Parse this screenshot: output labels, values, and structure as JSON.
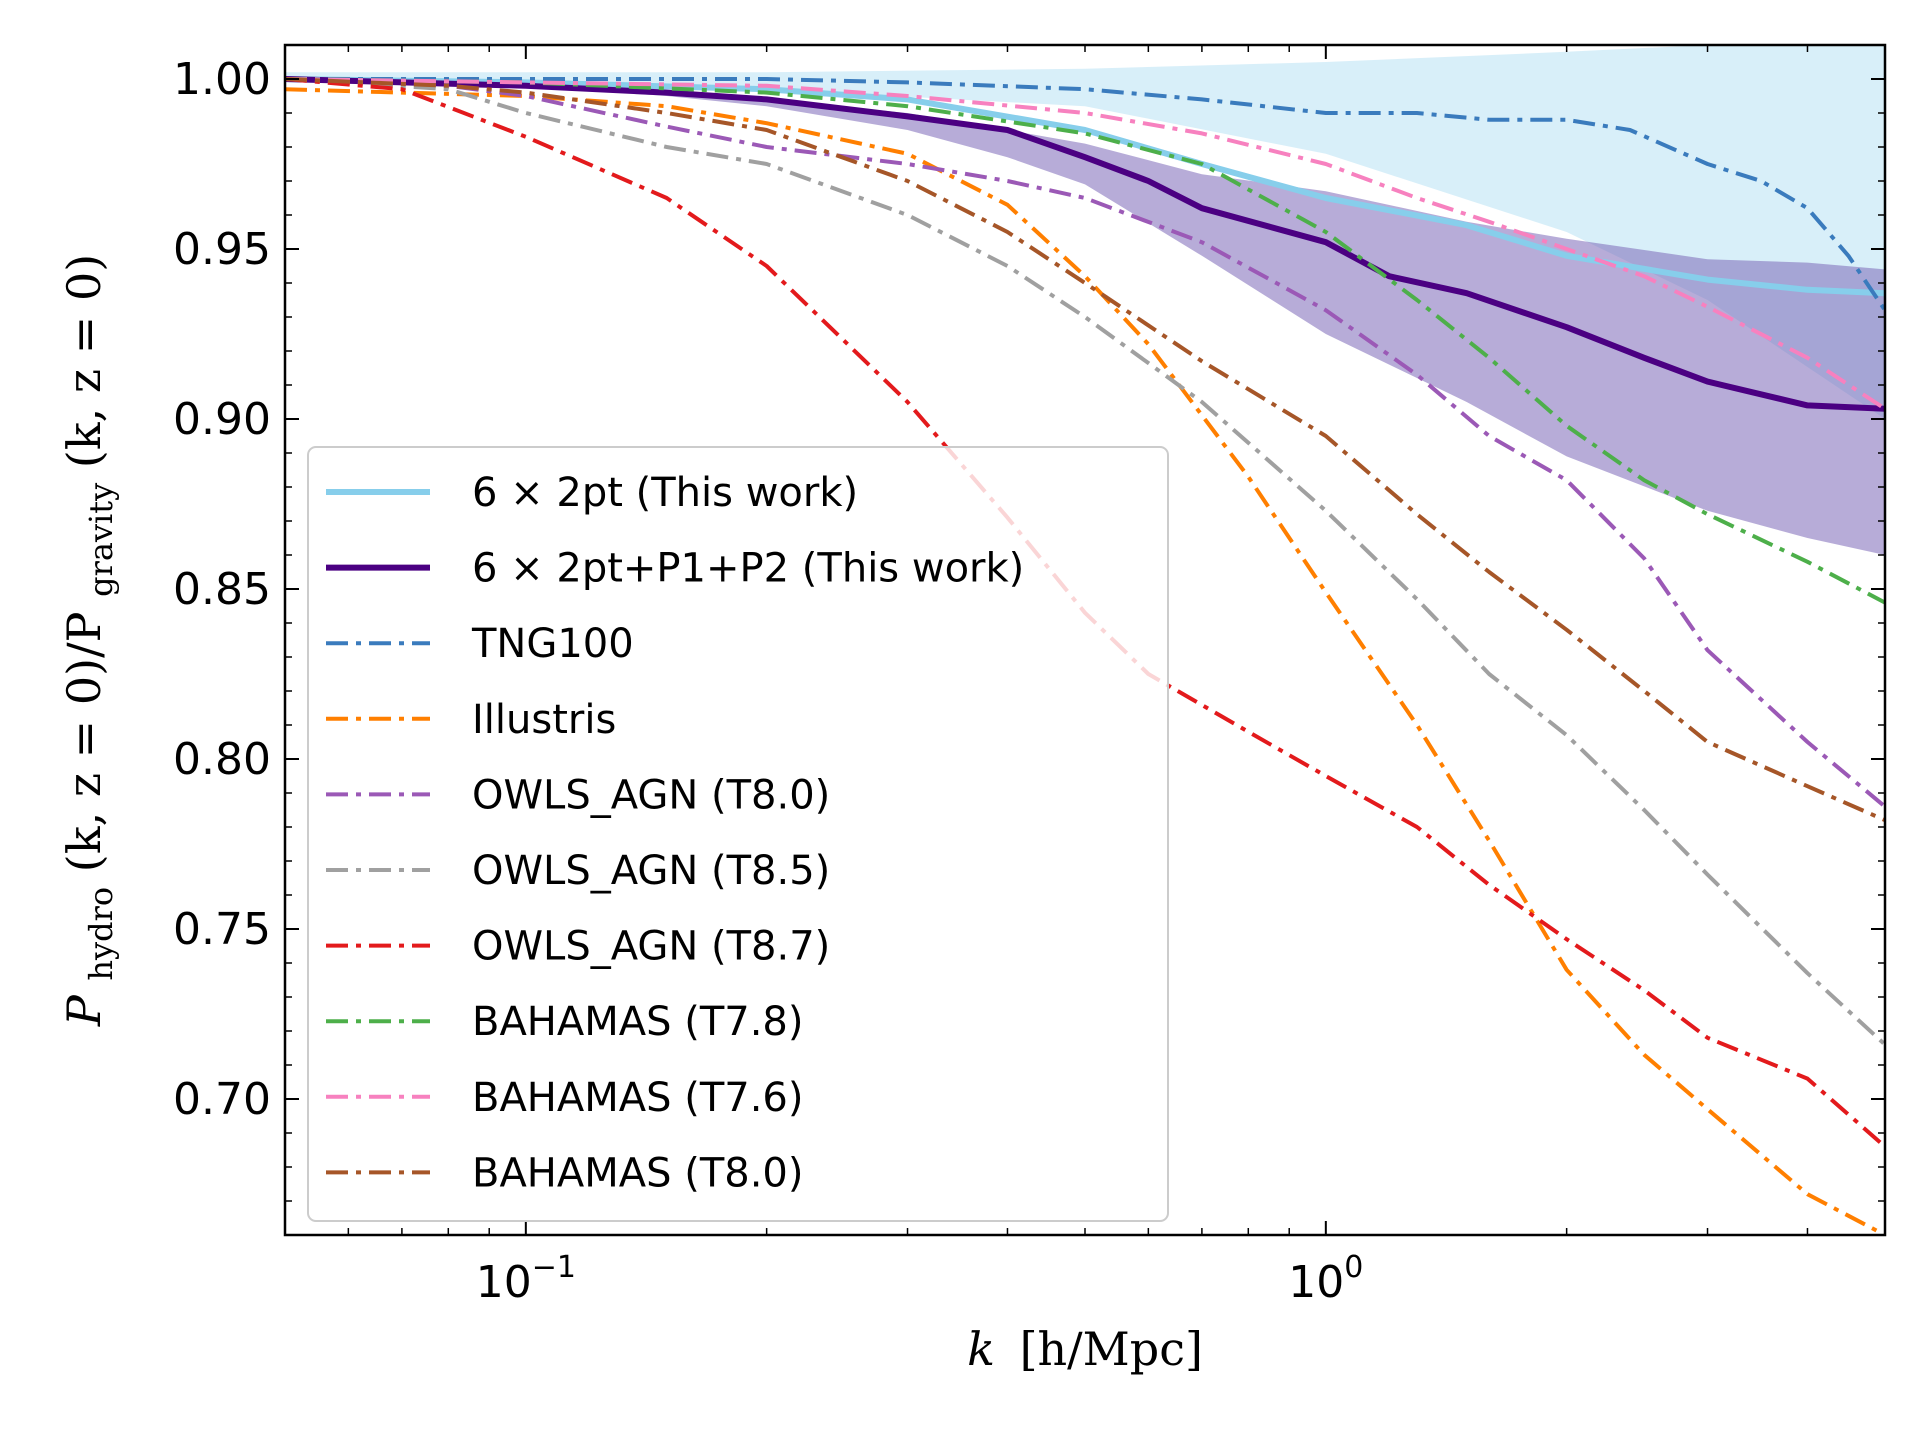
{
  "chart_data": {
    "type": "line",
    "xscale": "log",
    "xlim": [
      0.05,
      5.0
    ],
    "ylim": [
      0.66,
      1.01
    ],
    "xlabel_main": "k",
    "xlabel_unit": "[h/Mpc]",
    "ylabel_main": "P",
    "ylabel_sub": "hydro",
    "ylabel_mid": "(k, z = 0)/P",
    "ylabel_sub2": "gravity",
    "ylabel_end": "(k, z = 0)",
    "yticks": [
      0.7,
      0.75,
      0.8,
      0.85,
      0.9,
      0.95,
      1.0
    ],
    "ytick_labels": [
      "0.70",
      "0.75",
      "0.80",
      "0.85",
      "0.90",
      "0.95",
      "1.00"
    ],
    "xticks": [
      {
        "value": 0.1,
        "base": "10",
        "exp": "−1"
      },
      {
        "value": 1.0,
        "base": "10",
        "exp": "0"
      }
    ],
    "bands": [
      {
        "name": "6×2pt band",
        "color": "#87ceeb",
        "opacity": 0.32,
        "x": [
          0.05,
          0.1,
          0.2,
          0.5,
          1.0,
          2.0,
          3.0,
          5.0
        ],
        "upper": [
          1.002,
          1.002,
          1.002,
          1.003,
          1.005,
          1.008,
          1.01,
          1.01
        ],
        "lower": [
          0.999,
          0.998,
          0.997,
          0.992,
          0.978,
          0.955,
          0.935,
          0.9
        ]
      },
      {
        "name": "6×2pt+P1+P2 band",
        "color": "#7b68b8",
        "opacity": 0.55,
        "x": [
          0.1,
          0.15,
          0.2,
          0.3,
          0.4,
          0.5,
          0.7,
          1.0,
          1.5,
          2.0,
          3.0,
          4.0,
          5.0
        ],
        "upper": [
          0.998,
          0.996,
          0.994,
          0.99,
          0.985,
          0.981,
          0.972,
          0.967,
          0.958,
          0.953,
          0.947,
          0.946,
          0.944
        ],
        "lower": [
          0.998,
          0.995,
          0.992,
          0.985,
          0.977,
          0.969,
          0.948,
          0.925,
          0.905,
          0.889,
          0.873,
          0.865,
          0.86
        ]
      }
    ],
    "series": [
      {
        "name": "6 × 2pt (This work)",
        "color": "#87ceeb",
        "style": "solid",
        "width": 6,
        "x": [
          0.05,
          0.1,
          0.2,
          0.3,
          0.5,
          0.7,
          1.0,
          1.5,
          2.0,
          3.0,
          4.0,
          5.0
        ],
        "y": [
          1.0,
          0.999,
          0.997,
          0.994,
          0.985,
          0.975,
          0.965,
          0.957,
          0.948,
          0.941,
          0.938,
          0.937
        ]
      },
      {
        "name": "6 × 2pt+P1+P2 (This work)",
        "color": "#4b0082",
        "style": "solid",
        "width": 6,
        "x": [
          0.05,
          0.1,
          0.15,
          0.2,
          0.3,
          0.4,
          0.5,
          0.6,
          0.7,
          1.0,
          1.2,
          1.5,
          2.0,
          2.5,
          3.0,
          4.0,
          5.0
        ],
        "y": [
          1.0,
          0.998,
          0.996,
          0.994,
          0.989,
          0.985,
          0.977,
          0.97,
          0.962,
          0.952,
          0.942,
          0.937,
          0.927,
          0.918,
          0.911,
          0.904,
          0.903
        ]
      },
      {
        "name": "TNG100",
        "color": "#3a7bbd",
        "style": "dashdot",
        "width": 4,
        "x": [
          0.05,
          0.1,
          0.2,
          0.3,
          0.5,
          0.7,
          1.0,
          1.3,
          1.6,
          2.0,
          2.4,
          3.0,
          3.5,
          4.0,
          4.5,
          5.0
        ],
        "y": [
          1.0,
          1.0,
          1.0,
          0.999,
          0.997,
          0.994,
          0.99,
          0.99,
          0.988,
          0.988,
          0.985,
          0.975,
          0.97,
          0.962,
          0.948,
          0.932
        ]
      },
      {
        "name": "Illustris",
        "color": "#ff7f00",
        "style": "dashdot",
        "width": 4,
        "x": [
          0.05,
          0.07,
          0.1,
          0.15,
          0.2,
          0.3,
          0.4,
          0.5,
          0.6,
          0.8,
          1.0,
          1.3,
          1.6,
          2.0,
          2.5,
          3.0,
          4.0,
          5.0
        ],
        "y": [
          0.997,
          0.996,
          0.995,
          0.992,
          0.987,
          0.978,
          0.963,
          0.942,
          0.922,
          0.883,
          0.849,
          0.81,
          0.776,
          0.738,
          0.713,
          0.697,
          0.672,
          0.66
        ]
      },
      {
        "name": "OWLS_AGN (T8.0)",
        "color": "#9b59b6",
        "style": "dashdot",
        "width": 4,
        "x": [
          0.05,
          0.08,
          0.1,
          0.15,
          0.2,
          0.3,
          0.4,
          0.5,
          0.7,
          1.0,
          1.3,
          1.6,
          2.0,
          2.5,
          3.0,
          4.0,
          5.0
        ],
        "y": [
          1.0,
          0.998,
          0.995,
          0.986,
          0.98,
          0.975,
          0.97,
          0.965,
          0.952,
          0.932,
          0.913,
          0.895,
          0.882,
          0.859,
          0.832,
          0.805,
          0.786
        ]
      },
      {
        "name": "OWLS_AGN (T8.5)",
        "color": "#a0a0a0",
        "style": "dashdot",
        "width": 4,
        "x": [
          0.05,
          0.08,
          0.1,
          0.15,
          0.2,
          0.3,
          0.4,
          0.5,
          0.7,
          1.0,
          1.3,
          1.6,
          2.0,
          2.5,
          3.0,
          4.0,
          5.0
        ],
        "y": [
          1.0,
          0.997,
          0.99,
          0.98,
          0.975,
          0.96,
          0.945,
          0.93,
          0.905,
          0.873,
          0.847,
          0.825,
          0.807,
          0.785,
          0.766,
          0.737,
          0.716
        ]
      },
      {
        "name": "OWLS_AGN (T8.7)",
        "color": "#e31a1c",
        "style": "dashdot",
        "width": 4,
        "x": [
          0.05,
          0.07,
          0.1,
          0.15,
          0.2,
          0.3,
          0.4,
          0.5,
          0.6,
          0.8,
          1.0,
          1.3,
          1.6,
          2.0,
          2.5,
          3.0,
          4.0,
          5.0
        ],
        "y": [
          1.0,
          0.997,
          0.983,
          0.965,
          0.945,
          0.905,
          0.871,
          0.843,
          0.825,
          0.808,
          0.795,
          0.78,
          0.763,
          0.747,
          0.732,
          0.718,
          0.706,
          0.686
        ]
      },
      {
        "name": "BAHAMAS (T7.8)",
        "color": "#4daf4a",
        "style": "dashdot",
        "width": 4,
        "x": [
          0.05,
          0.1,
          0.2,
          0.3,
          0.5,
          0.7,
          1.0,
          1.3,
          1.6,
          2.0,
          2.5,
          3.0,
          4.0,
          5.0
        ],
        "y": [
          1.0,
          0.999,
          0.996,
          0.992,
          0.984,
          0.975,
          0.955,
          0.935,
          0.918,
          0.898,
          0.882,
          0.872,
          0.858,
          0.846
        ]
      },
      {
        "name": "BAHAMAS (T7.6)",
        "color": "#f781bf",
        "style": "dashdot",
        "width": 4,
        "x": [
          0.05,
          0.1,
          0.2,
          0.3,
          0.5,
          0.7,
          1.0,
          1.3,
          1.6,
          2.0,
          2.5,
          3.0,
          4.0,
          5.0
        ],
        "y": [
          1.0,
          0.999,
          0.998,
          0.995,
          0.99,
          0.984,
          0.975,
          0.965,
          0.958,
          0.95,
          0.942,
          0.933,
          0.918,
          0.903
        ]
      },
      {
        "name": "BAHAMAS (T8.0)",
        "color": "#a65628",
        "style": "dashdot",
        "width": 4,
        "x": [
          0.05,
          0.08,
          0.1,
          0.15,
          0.2,
          0.3,
          0.4,
          0.5,
          0.7,
          1.0,
          1.3,
          1.6,
          2.0,
          2.5,
          3.0,
          4.0,
          5.0
        ],
        "y": [
          1.0,
          0.998,
          0.996,
          0.99,
          0.985,
          0.97,
          0.955,
          0.94,
          0.917,
          0.895,
          0.872,
          0.855,
          0.838,
          0.82,
          0.805,
          0.792,
          0.782
        ]
      }
    ]
  }
}
